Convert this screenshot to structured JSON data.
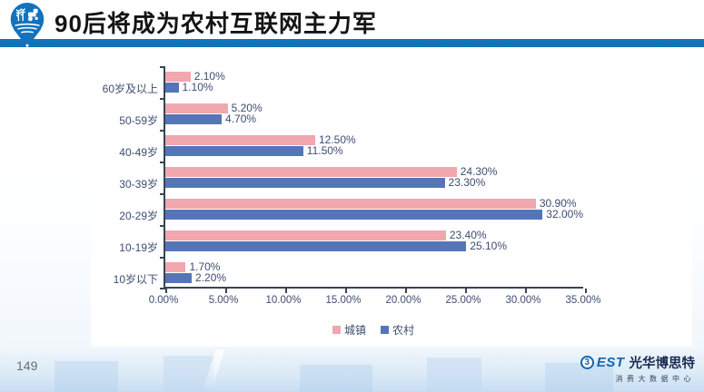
{
  "header": {
    "title": "90后将成为农村互联网主力军"
  },
  "chart_data": {
    "type": "bar",
    "orientation": "horizontal",
    "title": "",
    "categories": [
      "60岁及以上",
      "50-59岁",
      "40-49岁",
      "30-39岁",
      "20-29岁",
      "10-19岁",
      "10岁以下"
    ],
    "series": [
      {
        "name": "城镇",
        "color": "#F2A6AD",
        "values": [
          2.1,
          5.2,
          12.5,
          24.3,
          30.9,
          23.4,
          1.7
        ]
      },
      {
        "name": "农村",
        "color": "#5476B8",
        "values": [
          1.1,
          4.7,
          11.5,
          23.3,
          32.0,
          25.1,
          2.2
        ]
      }
    ],
    "x_ticks": [
      "0.00%",
      "5.00%",
      "10.00%",
      "15.00%",
      "20.00%",
      "25.00%",
      "30.00%",
      "35.00%"
    ],
    "xlim": [
      0,
      35
    ],
    "xlabel": "",
    "ylabel": "",
    "grid": false,
    "legend_position": "bottom",
    "data_labels_format": "percent_2dp"
  },
  "footer": {
    "page_number": "149",
    "logo": {
      "circle_glyph": "3",
      "brand_rest": "EST",
      "brand_name": "光华博思特",
      "subtitle": "消费大数据中心"
    }
  },
  "colors": {
    "header_bar": "#1273BC",
    "series_urban": "#F2A6AD",
    "series_rural": "#5476B8",
    "axis": "#3A4356",
    "label_text": "#3D4C70"
  }
}
